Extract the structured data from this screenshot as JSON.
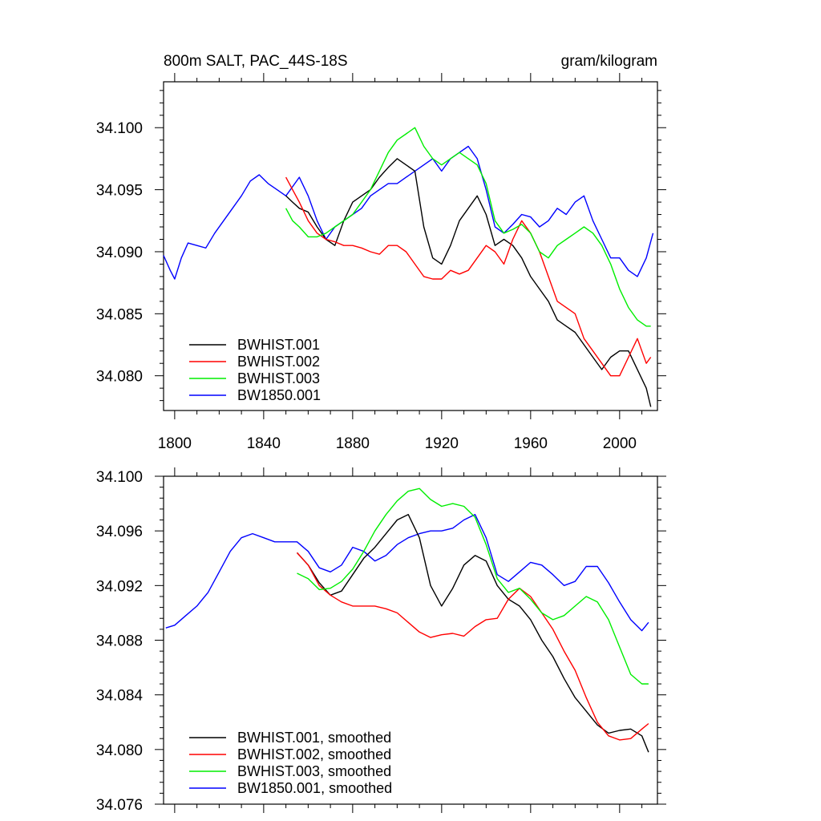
{
  "figure": {
    "title_left": "800m SALT, PAC_44S-18S",
    "title_right": "gram/kilogram"
  },
  "colors": {
    "BWHIST.001": "#000000",
    "BWHIST.002": "#ff0000",
    "BWHIST.003": "#00ee00",
    "BW1850.001": "#0000ff"
  },
  "chart_data": [
    {
      "type": "line",
      "title": "800m SALT, PAC_44S-18S",
      "units": "gram/kilogram",
      "xlim": [
        1795,
        2017
      ],
      "ylim": [
        34.0772,
        34.1037
      ],
      "xticks": [
        1800,
        1840,
        1880,
        1920,
        1960,
        2000
      ],
      "xticklabels": [
        "1800",
        "1840",
        "1880",
        "1920",
        "1960",
        "2000"
      ],
      "yticks": [
        34.08,
        34.085,
        34.09,
        34.095,
        34.1
      ],
      "yticklabels": [
        "34.080",
        "34.085",
        "34.090",
        "34.095",
        "34.100"
      ],
      "legend": [
        "BWHIST.001",
        "BWHIST.002",
        "BWHIST.003",
        "BW1850.001"
      ],
      "legend_position": "bottom-left",
      "series": [
        {
          "name": "BW1850.001",
          "x": [
            1795,
            1798,
            1800,
            1803,
            1806,
            1810,
            1814,
            1818,
            1822,
            1826,
            1830,
            1834,
            1838,
            1842,
            1846,
            1850,
            1852,
            1856,
            1860,
            1864,
            1868,
            1872,
            1876,
            1880,
            1884,
            1888,
            1892,
            1896,
            1900,
            1904,
            1908,
            1912,
            1916,
            1920,
            1924,
            1928,
            1932,
            1936,
            1940,
            1944,
            1948,
            1952,
            1956,
            1960,
            1964,
            1968,
            1972,
            1976,
            1980,
            1984,
            1988,
            1992,
            1996,
            2000,
            2004,
            2008,
            2012,
            2015
          ],
          "y": [
            34.0897,
            34.0885,
            34.0878,
            34.0895,
            34.0907,
            34.0905,
            34.0903,
            34.0915,
            34.0925,
            34.0935,
            34.0945,
            34.0957,
            34.0962,
            34.0955,
            34.095,
            34.0945,
            34.095,
            34.096,
            34.0945,
            34.0925,
            34.091,
            34.092,
            34.0925,
            34.093,
            34.0935,
            34.0945,
            34.095,
            34.0955,
            34.0955,
            34.096,
            34.0965,
            34.097,
            34.0975,
            34.0965,
            34.0975,
            34.098,
            34.0985,
            34.0975,
            34.095,
            34.092,
            34.0915,
            34.0922,
            34.093,
            34.0928,
            34.092,
            34.0925,
            34.0935,
            34.093,
            34.094,
            34.0945,
            34.0925,
            34.091,
            34.0895,
            34.0895,
            34.0885,
            34.088,
            34.0895,
            34.0915
          ]
        },
        {
          "name": "BWHIST.001",
          "x": [
            1850,
            1853,
            1856,
            1860,
            1864,
            1868,
            1872,
            1876,
            1880,
            1884,
            1888,
            1892,
            1896,
            1900,
            1904,
            1908,
            1912,
            1916,
            1920,
            1924,
            1928,
            1932,
            1936,
            1940,
            1944,
            1948,
            1952,
            1956,
            1960,
            1964,
            1968,
            1972,
            1976,
            1980,
            1984,
            1988,
            1992,
            1996,
            2000,
            2004,
            2008,
            2012,
            2014
          ],
          "y": [
            34.0945,
            34.094,
            34.0935,
            34.0932,
            34.092,
            34.091,
            34.0905,
            34.0925,
            34.094,
            34.0945,
            34.095,
            34.096,
            34.0968,
            34.0975,
            34.097,
            34.0965,
            34.092,
            34.0895,
            34.089,
            34.0905,
            34.0925,
            34.0935,
            34.0945,
            34.093,
            34.0905,
            34.091,
            34.0905,
            34.0895,
            34.088,
            34.087,
            34.086,
            34.0845,
            34.084,
            34.0835,
            34.0825,
            34.0815,
            34.0805,
            34.0815,
            34.082,
            34.082,
            34.0805,
            34.079,
            34.0775
          ]
        },
        {
          "name": "BWHIST.002",
          "x": [
            1850,
            1853,
            1856,
            1860,
            1864,
            1868,
            1872,
            1876,
            1880,
            1884,
            1888,
            1892,
            1896,
            1900,
            1904,
            1908,
            1912,
            1916,
            1920,
            1924,
            1928,
            1932,
            1936,
            1940,
            1944,
            1948,
            1952,
            1956,
            1960,
            1964,
            1968,
            1972,
            1976,
            1980,
            1984,
            1988,
            1992,
            1996,
            2000,
            2004,
            2008,
            2012,
            2014
          ],
          "y": [
            34.096,
            34.095,
            34.094,
            34.0925,
            34.0915,
            34.091,
            34.0908,
            34.0905,
            34.0905,
            34.0903,
            34.09,
            34.0898,
            34.0905,
            34.0905,
            34.09,
            34.089,
            34.088,
            34.0878,
            34.0878,
            34.0885,
            34.0882,
            34.0885,
            34.0895,
            34.0905,
            34.09,
            34.089,
            34.091,
            34.0925,
            34.0915,
            34.09,
            34.088,
            34.086,
            34.0855,
            34.085,
            34.083,
            34.082,
            34.081,
            34.08,
            34.08,
            34.0815,
            34.083,
            34.081,
            34.0815
          ]
        },
        {
          "name": "BWHIST.003",
          "x": [
            1850,
            1853,
            1856,
            1860,
            1864,
            1868,
            1872,
            1876,
            1880,
            1884,
            1888,
            1892,
            1896,
            1900,
            1904,
            1908,
            1912,
            1916,
            1920,
            1924,
            1928,
            1932,
            1936,
            1940,
            1944,
            1948,
            1952,
            1956,
            1960,
            1964,
            1968,
            1972,
            1976,
            1980,
            1984,
            1988,
            1992,
            1996,
            2000,
            2004,
            2008,
            2012,
            2014
          ],
          "y": [
            34.0935,
            34.0925,
            34.092,
            34.0912,
            34.0912,
            34.0915,
            34.092,
            34.0925,
            34.093,
            34.094,
            34.095,
            34.0965,
            34.098,
            34.099,
            34.0995,
            34.1,
            34.0985,
            34.0975,
            34.097,
            34.0975,
            34.098,
            34.0975,
            34.097,
            34.0955,
            34.0925,
            34.0915,
            34.0918,
            34.0922,
            34.0915,
            34.09,
            34.0895,
            34.0905,
            34.091,
            34.0915,
            34.092,
            34.0915,
            34.0905,
            34.089,
            34.087,
            34.0855,
            34.0845,
            34.084,
            34.084
          ]
        }
      ]
    },
    {
      "type": "line",
      "title": "",
      "xlim": [
        1795,
        2017
      ],
      "ylim": [
        34.076,
        34.1
      ],
      "xticks": [
        1800,
        1840,
        1880,
        1920,
        1960,
        2000
      ],
      "xticklabels": [
        "",
        "",
        "",
        "",
        "",
        ""
      ],
      "yticks": [
        34.076,
        34.08,
        34.084,
        34.088,
        34.092,
        34.096,
        34.1
      ],
      "yticklabels": [
        "34.076",
        "34.080",
        "34.084",
        "34.088",
        "34.092",
        "34.096",
        "34.100"
      ],
      "legend": [
        "BWHIST.001, smoothed",
        "BWHIST.002, smoothed",
        "BWHIST.003, smoothed",
        "BW1850.001, smoothed"
      ],
      "legend_position": "bottom-left",
      "series": [
        {
          "name": "BW1850.001, smoothed",
          "x": [
            1796,
            1800,
            1805,
            1810,
            1815,
            1820,
            1825,
            1830,
            1835,
            1840,
            1845,
            1850,
            1855,
            1860,
            1865,
            1870,
            1875,
            1880,
            1885,
            1890,
            1895,
            1900,
            1905,
            1910,
            1915,
            1920,
            1925,
            1930,
            1935,
            1940,
            1945,
            1950,
            1955,
            1960,
            1965,
            1970,
            1975,
            1980,
            1985,
            1990,
            1995,
            2000,
            2005,
            2010,
            2013
          ],
          "y": [
            34.0889,
            34.0891,
            34.0898,
            34.0905,
            34.0915,
            34.093,
            34.0945,
            34.0955,
            34.0958,
            34.0955,
            34.0952,
            34.0952,
            34.0952,
            34.0945,
            34.0933,
            34.093,
            34.0935,
            34.0948,
            34.0945,
            34.0938,
            34.0942,
            34.095,
            34.0955,
            34.0958,
            34.096,
            34.096,
            34.0962,
            34.0968,
            34.0972,
            34.0955,
            34.0928,
            34.0923,
            34.093,
            34.0937,
            34.0935,
            34.0928,
            34.092,
            34.0923,
            34.0934,
            34.0934,
            34.0922,
            34.0908,
            34.0895,
            34.0887,
            34.0893
          ]
        },
        {
          "name": "BWHIST.001, smoothed",
          "x": [
            1855,
            1860,
            1865,
            1870,
            1875,
            1880,
            1885,
            1890,
            1895,
            1900,
            1905,
            1910,
            1915,
            1920,
            1925,
            1930,
            1935,
            1940,
            1945,
            1950,
            1955,
            1960,
            1965,
            1970,
            1975,
            1980,
            1985,
            1990,
            1995,
            2000,
            2005,
            2010,
            2013
          ],
          "y": [
            34.0944,
            34.0935,
            34.0922,
            34.0913,
            34.0916,
            34.0928,
            34.094,
            34.0948,
            34.0958,
            34.0968,
            34.0972,
            34.0955,
            34.092,
            34.0905,
            34.0918,
            34.0935,
            34.0942,
            34.0938,
            34.092,
            34.091,
            34.0905,
            34.0895,
            34.088,
            34.0868,
            34.0852,
            34.0838,
            34.0828,
            34.0818,
            34.0812,
            34.0814,
            34.0815,
            34.081,
            34.0798
          ]
        },
        {
          "name": "BWHIST.002, smoothed",
          "x": [
            1855,
            1860,
            1865,
            1870,
            1875,
            1880,
            1885,
            1890,
            1895,
            1900,
            1905,
            1910,
            1915,
            1920,
            1925,
            1930,
            1935,
            1940,
            1945,
            1950,
            1955,
            1960,
            1965,
            1970,
            1975,
            1980,
            1985,
            1990,
            1995,
            2000,
            2005,
            2010,
            2013
          ],
          "y": [
            34.0944,
            34.0935,
            34.092,
            34.0913,
            34.0908,
            34.0905,
            34.0905,
            34.0905,
            34.0903,
            34.09,
            34.0893,
            34.0886,
            34.0882,
            34.0884,
            34.0885,
            34.0883,
            34.089,
            34.0895,
            34.0896,
            34.091,
            34.0918,
            34.0912,
            34.09,
            34.0888,
            34.0872,
            34.0858,
            34.0838,
            34.082,
            34.081,
            34.0807,
            34.0808,
            34.0815,
            34.0819
          ]
        },
        {
          "name": "BWHIST.003, smoothed",
          "x": [
            1855,
            1860,
            1865,
            1870,
            1875,
            1880,
            1885,
            1890,
            1895,
            1900,
            1905,
            1910,
            1915,
            1920,
            1925,
            1930,
            1935,
            1940,
            1945,
            1950,
            1955,
            1960,
            1965,
            1970,
            1975,
            1980,
            1985,
            1990,
            1995,
            2000,
            2005,
            2010,
            2013
          ],
          "y": [
            34.0929,
            34.0925,
            34.0917,
            34.0918,
            34.0923,
            34.0932,
            34.0945,
            34.096,
            34.0972,
            34.0982,
            34.0989,
            34.0991,
            34.0983,
            34.0978,
            34.098,
            34.0978,
            34.097,
            34.095,
            34.0925,
            34.0915,
            34.0918,
            34.091,
            34.09,
            34.0895,
            34.0898,
            34.0905,
            34.0912,
            34.0908,
            34.0895,
            34.0875,
            34.0855,
            34.0848,
            34.0848
          ]
        }
      ]
    }
  ]
}
